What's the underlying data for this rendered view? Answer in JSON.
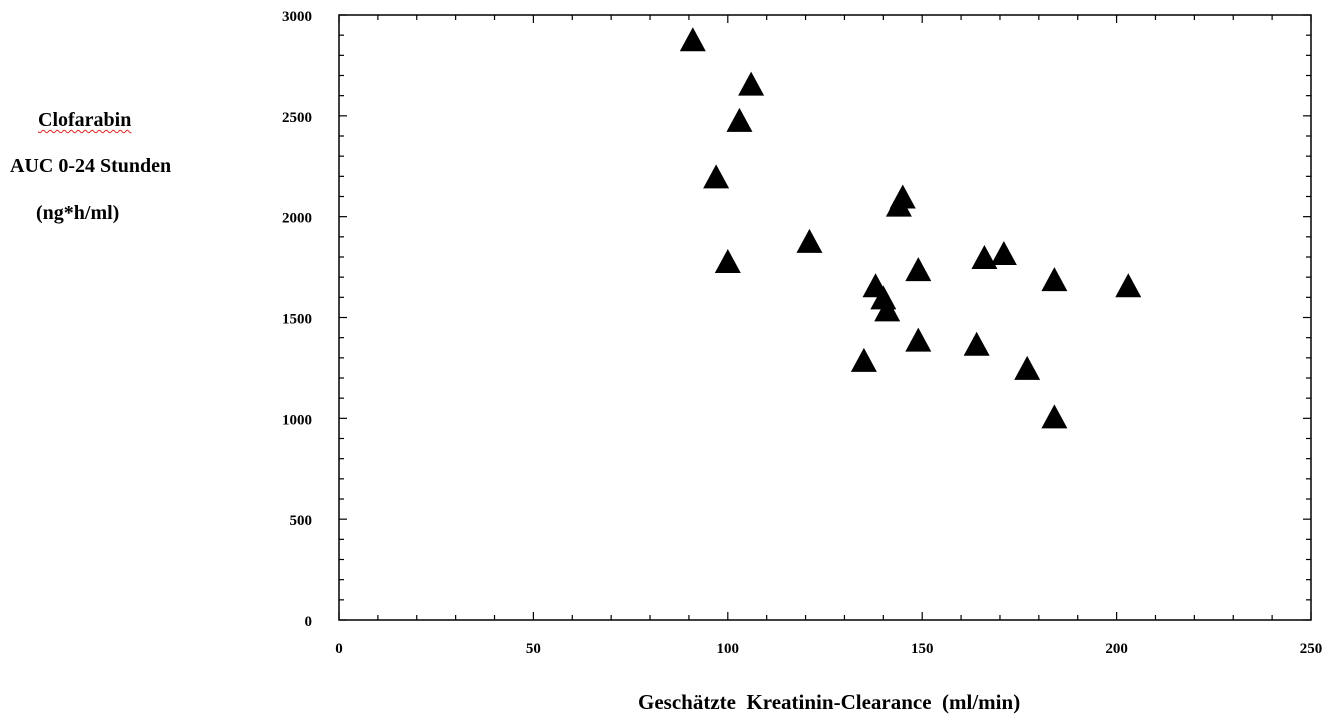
{
  "chart_data": {
    "type": "scatter",
    "marker": "triangle",
    "marker_color": "#000000",
    "ylabel_lines": [
      "Clofarabin",
      "AUC 0-24 Stunden",
      "(ng*h/ml)"
    ],
    "xlabel": "Geschätzte  Kreatinin-Clearance  (ml/min)",
    "xlim": [
      0,
      250
    ],
    "ylim": [
      0,
      3000
    ],
    "x_ticks": [
      0,
      50,
      100,
      150,
      200,
      250
    ],
    "y_ticks": [
      0,
      500,
      1000,
      1500,
      2000,
      2500,
      3000
    ],
    "grid": false,
    "points": [
      {
        "x": 91,
        "y": 2880
      },
      {
        "x": 106,
        "y": 2660
      },
      {
        "x": 103,
        "y": 2480
      },
      {
        "x": 97,
        "y": 2200
      },
      {
        "x": 145,
        "y": 2100
      },
      {
        "x": 144,
        "y": 2060
      },
      {
        "x": 121,
        "y": 1880
      },
      {
        "x": 100,
        "y": 1780
      },
      {
        "x": 171,
        "y": 1820
      },
      {
        "x": 166,
        "y": 1800
      },
      {
        "x": 149,
        "y": 1740
      },
      {
        "x": 184,
        "y": 1690
      },
      {
        "x": 203,
        "y": 1660
      },
      {
        "x": 138,
        "y": 1660
      },
      {
        "x": 140,
        "y": 1600
      },
      {
        "x": 141,
        "y": 1540
      },
      {
        "x": 149,
        "y": 1390
      },
      {
        "x": 164,
        "y": 1370
      },
      {
        "x": 135,
        "y": 1290
      },
      {
        "x": 177,
        "y": 1250
      },
      {
        "x": 184,
        "y": 1010
      }
    ]
  }
}
